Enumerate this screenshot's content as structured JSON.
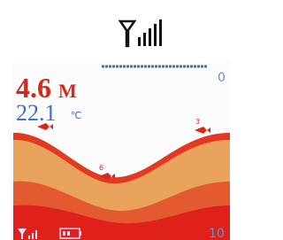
{
  "depth": {
    "value": "4.6",
    "unit": "M"
  },
  "temperature": {
    "value": "22.1",
    "unit": "℃"
  },
  "scale": {
    "top": "0",
    "bottom": "10"
  },
  "fish": [
    {
      "label": "6"
    },
    {
      "label": "3"
    }
  ]
}
